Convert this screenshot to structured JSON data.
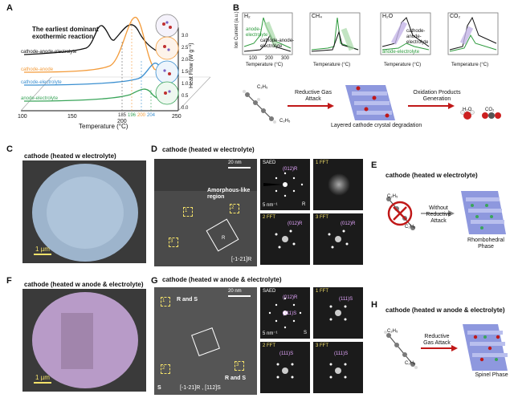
{
  "panels": {
    "A": {
      "label": "A",
      "annotation": "The earliest dominant exothermic reaction",
      "curve_labels": [
        "cathode-anode-electrolyte",
        "cathode-anode",
        "cathode-electrolyte",
        "anode-electrolyte"
      ],
      "curve_colors": [
        "#111111",
        "#f39b3a",
        "#3a8fd0",
        "#3aa55a"
      ],
      "xlabel": "Temperature (°C)",
      "ylabel": "Heat Flow (W g⁻¹)",
      "xticks": [
        "100",
        "150",
        "200",
        "250"
      ],
      "yticks": [
        "0.0",
        "0.5",
        "1.0",
        "1.5",
        "2.0",
        "2.5",
        "3.0"
      ],
      "peak_temps": [
        "185",
        "196",
        "200",
        "204"
      ]
    },
    "B": {
      "label": "B",
      "gases": [
        "H₂",
        "CH₄",
        "H₂O",
        "CO₂"
      ],
      "ylabel": "Ion Current (a.u.)",
      "xlabel": "Temperature (°C)",
      "xticks": [
        "100",
        "200",
        "300"
      ],
      "legend_anode": "anode-electrolyte",
      "legend_cathode": "cathode-anode-electrolyte",
      "scheme_reagent_top": "C₂H₅",
      "scheme_reagent_bottom": "C₂H₅",
      "arrow1": "Reductive Gas Attack",
      "arrow2": "Oxidation Products Generation",
      "crystal_caption": "Layered cathode crystal degradation",
      "products": [
        "H₂O",
        "CO₂"
      ]
    },
    "C": {
      "label": "C",
      "title": "cathode (heated w electrolyte)",
      "scale": "1 µm"
    },
    "D": {
      "label": "D",
      "title": "cathode (heated w electrolyte)",
      "scale_top": "20 nm",
      "region": "Amorphous-like region",
      "zone": "[-1-21]R",
      "saed": "SAED",
      "saed_spot": "(012)R",
      "saed_scale": "5 nm⁻¹",
      "saed_tag": "R",
      "fft_labels": [
        "1 FFT",
        "2 FFT",
        "3 FFT"
      ],
      "fft_spots": [
        "(012)R",
        "(012)R"
      ],
      "boxes": [
        "1",
        "2",
        "3",
        "R"
      ]
    },
    "E": {
      "label": "E",
      "title": "cathode (heated w electrolyte)",
      "reagent_top": "C₂H₅",
      "reagent_bottom": "C₂H₅",
      "arrow": "Without Reductive Attack",
      "phase": "Rhombohedral Phase"
    },
    "F": {
      "label": "F",
      "title": "cathode (heated w anode & electrolyte)",
      "scale": "1 µm"
    },
    "G": {
      "label": "G",
      "title": "cathode (heated w anode & electrolyte)",
      "scale_top": "20 nm",
      "rs_top": "R and S",
      "rs_bottom": "R and S",
      "zone": "[-1-21]R , [112]S",
      "s_tag": "S",
      "saed": "SAED",
      "saed_spots": [
        "(012)R",
        "(111)S"
      ],
      "saed_scale": "5 nm⁻¹",
      "saed_tag": "S",
      "fft_labels": [
        "1 FFT",
        "2 FFT",
        "3 FFT"
      ],
      "fft_spots": [
        "(111)S",
        "(111)S",
        "(111)S"
      ],
      "boxes": [
        "1",
        "2",
        "3"
      ]
    },
    "H": {
      "label": "H",
      "title": "cathode (heated w anode & electrolyte)",
      "reagent_top": "C₂H₅",
      "reagent_bottom": "C₂H₅",
      "arrow": "Reductive Gas Attack",
      "phase": "Spinel Phase"
    }
  }
}
